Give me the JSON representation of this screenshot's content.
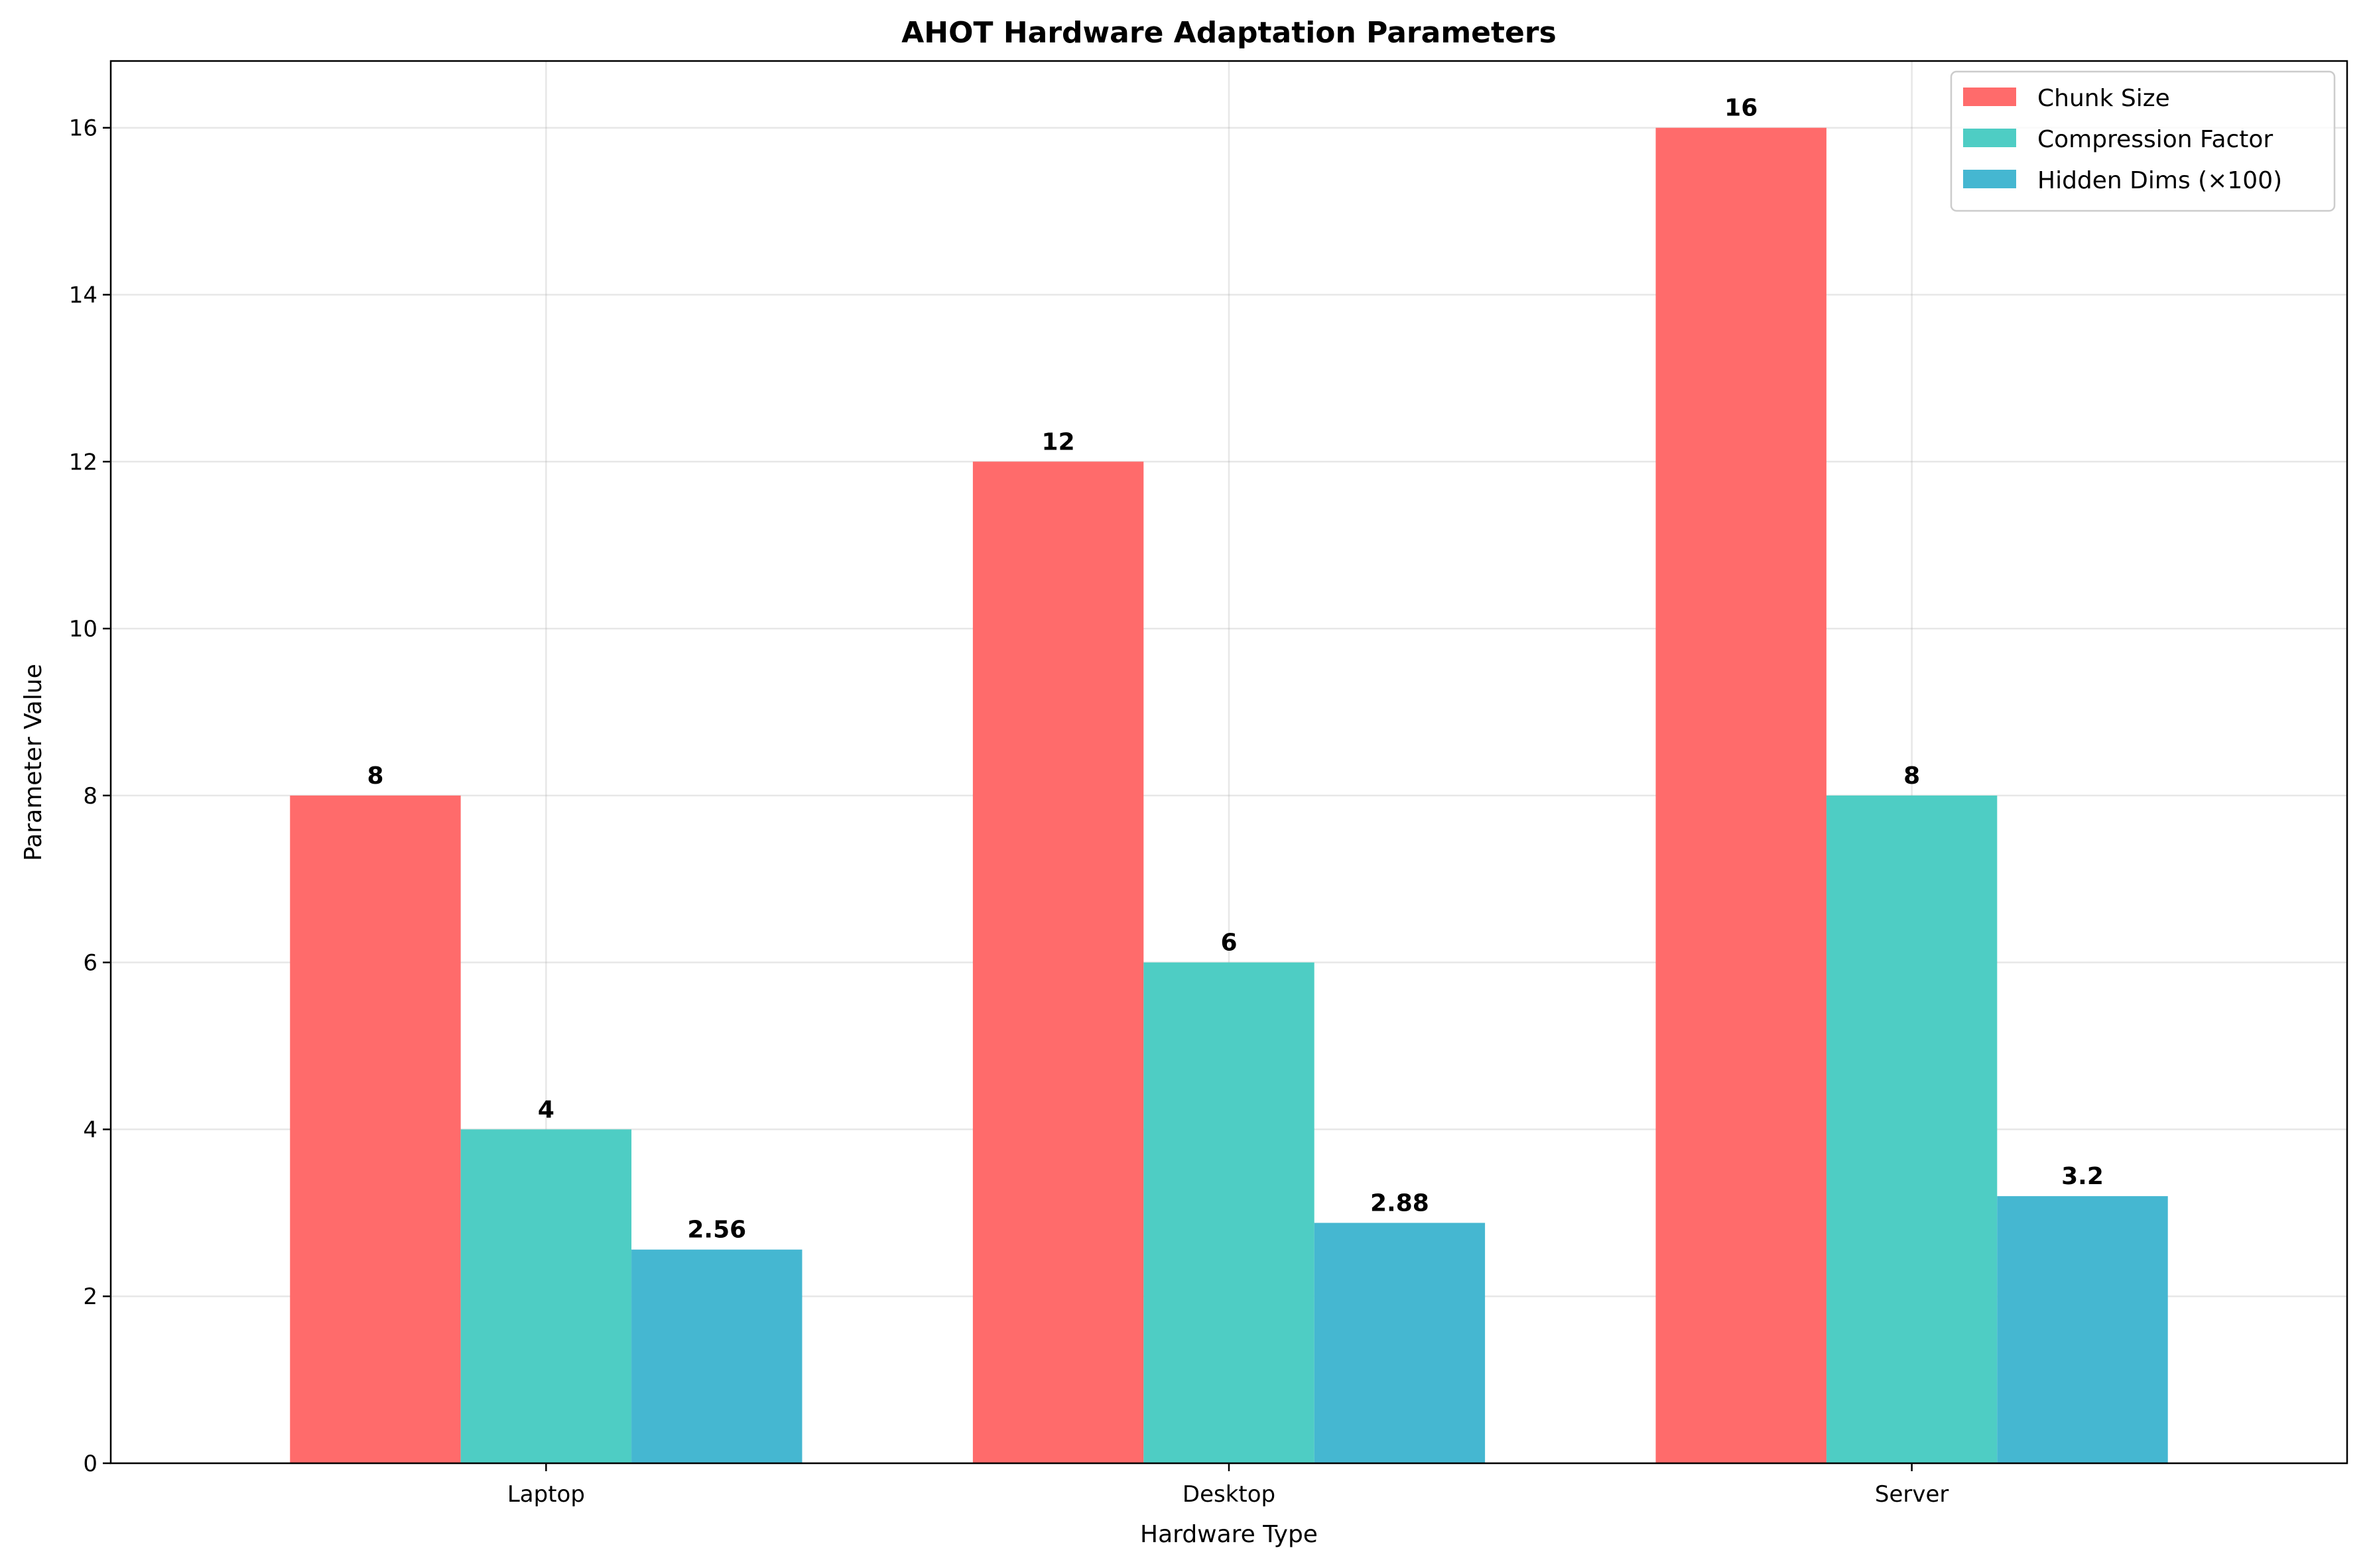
{
  "chart_data": {
    "type": "bar",
    "title": "AHOT Hardware Adaptation Parameters",
    "xlabel": "Hardware Type",
    "ylabel": "Parameter Value",
    "categories": [
      "Laptop",
      "Desktop",
      "Server"
    ],
    "series": [
      {
        "name": "Chunk Size",
        "values": [
          8,
          12,
          16
        ],
        "labels": [
          "8",
          "12",
          "16"
        ],
        "color": "#FF6B6B"
      },
      {
        "name": "Compression Factor",
        "values": [
          4,
          6,
          8
        ],
        "labels": [
          "4",
          "6",
          "8"
        ],
        "color": "#4ECDC4"
      },
      {
        "name": "Hidden Dims (×100)",
        "values": [
          2.56,
          2.88,
          3.2
        ],
        "labels": [
          "2.56",
          "2.88",
          "3.2"
        ],
        "color": "#45B7D1"
      }
    ],
    "ylim": [
      0,
      16.8
    ],
    "yticks": [
      0,
      2,
      4,
      6,
      8,
      10,
      12,
      14,
      16
    ],
    "grid": true,
    "legend": "top-right"
  }
}
